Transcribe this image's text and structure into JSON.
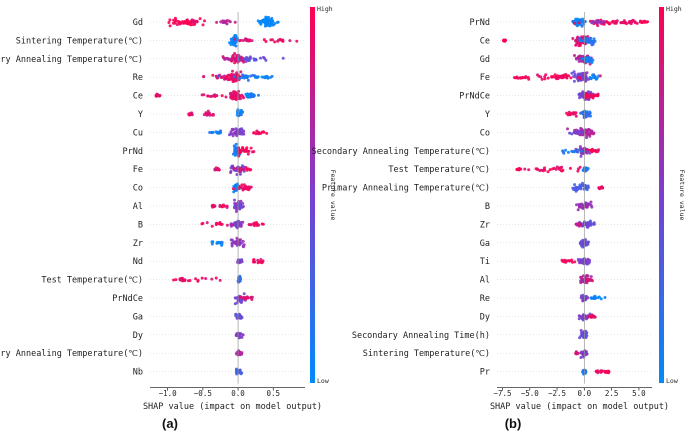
{
  "chart_data": [
    {
      "type": "beeswarm",
      "panel_label": "(a)",
      "xlabel": "SHAP value (impact on model output)",
      "xlim": [
        -1.25,
        0.95
      ],
      "xticks": [
        -1.0,
        -0.5,
        0.0,
        0.5
      ],
      "xtick_labels": [
        "−1.0",
        "−0.5",
        "0.0",
        "0.5"
      ],
      "colorbar": {
        "title": "Feature value",
        "high": "High",
        "low": "Low"
      },
      "features": [
        {
          "name": "Gd",
          "clusters": [
            [
              0.41,
              0.0,
              0.06,
              0.8,
              5
            ],
            [
              -0.78,
              1.0,
              0.12,
              0.6,
              3
            ],
            [
              -0.62,
              0.9,
              0.05,
              0.4,
              1
            ],
            [
              -0.2,
              0.75,
              0.06,
              0.4,
              1
            ]
          ]
        },
        {
          "name": "Sintering Temperature(℃)",
          "clusters": [
            [
              -0.05,
              0.0,
              0.02,
              0.8,
              4
            ],
            [
              0.55,
              0.95,
              0.16,
              0.4,
              1
            ],
            [
              0.12,
              0.85,
              0.05,
              0.3,
              1
            ]
          ]
        },
        {
          "name": "Secondary Annealing Temperature(℃)",
          "clusters": [
            [
              -0.03,
              0.9,
              0.05,
              0.8,
              4
            ],
            [
              0.15,
              0.4,
              0.15,
              0.5,
              2
            ],
            [
              -0.15,
              0.75,
              0.06,
              0.3,
              1
            ]
          ]
        },
        {
          "name": "Re",
          "clusters": [
            [
              -0.05,
              0.9,
              0.05,
              0.8,
              4
            ],
            [
              -0.2,
              0.9,
              0.14,
              0.4,
              2
            ],
            [
              0.12,
              0.1,
              0.1,
              0.4,
              2
            ],
            [
              0.4,
              0.05,
              0.05,
              0.3,
              1
            ]
          ]
        },
        {
          "name": "Ce",
          "clusters": [
            [
              -0.05,
              0.9,
              0.05,
              0.8,
              4
            ],
            [
              0.18,
              0.05,
              0.04,
              0.5,
              2
            ],
            [
              -0.35,
              0.9,
              0.1,
              0.3,
              1
            ],
            [
              -1.15,
              0.9,
              0.02,
              0.2,
              1
            ]
          ]
        },
        {
          "name": "Y",
          "clusters": [
            [
              0.02,
              0.05,
              0.02,
              0.5,
              2
            ],
            [
              -0.4,
              0.9,
              0.07,
              0.4,
              1
            ],
            [
              -0.68,
              0.9,
              0.02,
              0.2,
              1
            ]
          ]
        },
        {
          "name": "Cu",
          "clusters": [
            [
              -0.01,
              0.5,
              0.05,
              0.8,
              3
            ],
            [
              0.3,
              1.0,
              0.05,
              0.4,
              1
            ],
            [
              -0.3,
              0.1,
              0.06,
              0.3,
              1
            ]
          ]
        },
        {
          "name": "PrNd",
          "clusters": [
            [
              -0.02,
              0.1,
              0.03,
              0.8,
              3
            ],
            [
              0.1,
              1.0,
              0.06,
              0.6,
              2
            ]
          ]
        },
        {
          "name": "Fe",
          "clusters": [
            [
              -0.02,
              0.5,
              0.05,
              0.8,
              3
            ],
            [
              0.1,
              0.9,
              0.05,
              0.4,
              1
            ],
            [
              -0.3,
              0.9,
              0.02,
              0.2,
              1
            ]
          ]
        },
        {
          "name": "Co",
          "clusters": [
            [
              -0.02,
              0.1,
              0.02,
              0.7,
              3
            ],
            [
              0.1,
              0.95,
              0.05,
              0.5,
              2
            ]
          ]
        },
        {
          "name": "Al",
          "clusters": [
            [
              0.0,
              0.5,
              0.04,
              0.8,
              3
            ],
            [
              -0.2,
              0.9,
              0.04,
              0.3,
              1
            ],
            [
              -0.35,
              0.9,
              0.01,
              0.2,
              1
            ]
          ]
        },
        {
          "name": "B",
          "clusters": [
            [
              0.0,
              0.5,
              0.04,
              0.8,
              3
            ],
            [
              -0.25,
              0.9,
              0.1,
              0.3,
              1
            ],
            [
              0.25,
              0.95,
              0.06,
              0.3,
              1
            ]
          ]
        },
        {
          "name": "Zr",
          "clusters": [
            [
              0.0,
              0.6,
              0.04,
              0.8,
              3
            ],
            [
              -0.3,
              0.05,
              0.05,
              0.3,
              1
            ]
          ]
        },
        {
          "name": "Nd",
          "clusters": [
            [
              0.02,
              0.5,
              0.02,
              0.4,
              1
            ],
            [
              0.28,
              0.95,
              0.05,
              0.4,
              1
            ]
          ]
        },
        {
          "name": "Test Temperature(℃)",
          "clusters": [
            [
              0.02,
              0.2,
              0.01,
              0.5,
              2
            ],
            [
              -0.55,
              0.95,
              0.2,
              0.4,
              1
            ],
            [
              -0.8,
              0.9,
              0.03,
              0.3,
              1
            ]
          ]
        },
        {
          "name": "PrNdCe",
          "clusters": [
            [
              0.02,
              0.5,
              0.04,
              0.8,
              2
            ],
            [
              0.12,
              0.9,
              0.03,
              0.3,
              1
            ]
          ]
        },
        {
          "name": "Ga",
          "clusters": [
            [
              0.01,
              0.4,
              0.02,
              0.6,
              2
            ]
          ]
        },
        {
          "name": "Dy",
          "clusters": [
            [
              0.01,
              0.5,
              0.02,
              0.6,
              2
            ]
          ]
        },
        {
          "name": "Primary Annealing Temperature(℃)",
          "clusters": [
            [
              0.01,
              0.7,
              0.02,
              0.6,
              2
            ]
          ]
        },
        {
          "name": "Nb",
          "clusters": [
            [
              0.01,
              0.3,
              0.02,
              0.5,
              2
            ]
          ]
        }
      ]
    },
    {
      "type": "beeswarm",
      "panel_label": "(b)",
      "xlabel": "SHAP value (impact on model output)",
      "xlim": [
        -8.0,
        6.2
      ],
      "xticks": [
        -7.5,
        -5.0,
        -2.5,
        0.0,
        2.5,
        5.0
      ],
      "xtick_labels": [
        "−7.5",
        "−5.0",
        "−2.5",
        "0.0",
        "2.5",
        "5.0"
      ],
      "colorbar": {
        "title": "Feature value",
        "high": "High",
        "low": "Low"
      },
      "features": [
        {
          "name": "PrNd",
          "clusters": [
            [
              -0.5,
              0.05,
              0.3,
              0.6,
              4
            ],
            [
              2.8,
              0.92,
              1.4,
              0.5,
              4
            ],
            [
              1.2,
              0.6,
              0.4,
              0.3,
              1
            ],
            [
              5.4,
              1.0,
              0.2,
              0.2,
              1
            ]
          ]
        },
        {
          "name": "Ce",
          "clusters": [
            [
              -0.3,
              0.9,
              0.35,
              0.9,
              5
            ],
            [
              0.4,
              0.15,
              0.3,
              0.6,
              3
            ],
            [
              -7.3,
              1.0,
              0.05,
              0.2,
              1
            ]
          ]
        },
        {
          "name": "Gd",
          "clusters": [
            [
              -0.1,
              0.7,
              0.4,
              0.8,
              4
            ],
            [
              0.3,
              0.1,
              0.2,
              0.5,
              2
            ]
          ]
        },
        {
          "name": "Fe",
          "clusters": [
            [
              -0.3,
              0.5,
              0.4,
              0.8,
              4
            ],
            [
              -2.5,
              0.95,
              1.2,
              0.5,
              3
            ],
            [
              -5.8,
              1.0,
              0.5,
              0.3,
              1
            ],
            [
              1.0,
              0.05,
              0.3,
              0.4,
              1
            ]
          ]
        },
        {
          "name": "PrNdCe",
          "clusters": [
            [
              0.1,
              0.5,
              0.3,
              0.8,
              4
            ],
            [
              0.7,
              0.95,
              0.3,
              0.4,
              2
            ]
          ]
        },
        {
          "name": "Y",
          "clusters": [
            [
              0.1,
              0.2,
              0.2,
              0.6,
              3
            ],
            [
              -1.0,
              0.95,
              0.4,
              0.4,
              1
            ]
          ]
        },
        {
          "name": "Co",
          "clusters": [
            [
              0.0,
              0.7,
              0.5,
              0.8,
              4
            ],
            [
              -0.6,
              0.5,
              0.3,
              0.4,
              1
            ]
          ]
        },
        {
          "name": "Secondary Annealing Temperature(℃)",
          "clusters": [
            [
              0.0,
              0.6,
              0.3,
              0.7,
              3
            ],
            [
              -1.0,
              0.15,
              0.8,
              0.4,
              1
            ],
            [
              0.8,
              0.95,
              0.3,
              0.3,
              1
            ]
          ]
        },
        {
          "name": "Test Temperature(℃)",
          "clusters": [
            [
              0.1,
              0.1,
              0.1,
              0.5,
              2
            ],
            [
              -3.0,
              0.95,
              1.5,
              0.5,
              2
            ],
            [
              -6.0,
              1.0,
              0.1,
              0.2,
              1
            ]
          ]
        },
        {
          "name": "Primary Annealing Temperature(℃)",
          "clusters": [
            [
              -0.2,
              0.3,
              0.5,
              0.6,
              3
            ],
            [
              1.5,
              0.95,
              0.1,
              0.2,
              1
            ]
          ]
        },
        {
          "name": "B",
          "clusters": [
            [
              0.0,
              0.6,
              0.3,
              0.7,
              3
            ]
          ]
        },
        {
          "name": "Zr",
          "clusters": [
            [
              0.1,
              0.4,
              0.3,
              0.6,
              3
            ],
            [
              -0.5,
              0.8,
              0.2,
              0.3,
              1
            ]
          ]
        },
        {
          "name": "Ga",
          "clusters": [
            [
              0.0,
              0.4,
              0.2,
              0.6,
              3
            ]
          ]
        },
        {
          "name": "Ti",
          "clusters": [
            [
              0.0,
              0.5,
              0.2,
              0.6,
              3
            ],
            [
              -1.5,
              0.95,
              0.4,
              0.3,
              1
            ]
          ]
        },
        {
          "name": "Al",
          "clusters": [
            [
              0.0,
              0.7,
              0.2,
              0.7,
              3
            ],
            [
              0.5,
              0.9,
              0.1,
              0.2,
              1
            ]
          ]
        },
        {
          "name": "Re",
          "clusters": [
            [
              0.0,
              0.5,
              0.15,
              0.6,
              2
            ],
            [
              1.0,
              0.05,
              0.4,
              0.3,
              1
            ]
          ]
        },
        {
          "name": "Dy",
          "clusters": [
            [
              0.0,
              0.5,
              0.2,
              0.6,
              2
            ],
            [
              0.7,
              0.9,
              0.2,
              0.3,
              1
            ]
          ]
        },
        {
          "name": "Secondary Annealing Time(h)",
          "clusters": [
            [
              0.0,
              0.4,
              0.15,
              0.6,
              2
            ]
          ]
        },
        {
          "name": "Sintering Temperature(℃)",
          "clusters": [
            [
              0.0,
              0.5,
              0.15,
              0.6,
              2
            ],
            [
              -0.7,
              0.9,
              0.05,
              0.2,
              1
            ]
          ]
        },
        {
          "name": "Pr",
          "clusters": [
            [
              0.0,
              0.1,
              0.1,
              0.5,
              2
            ],
            [
              1.5,
              0.95,
              0.3,
              0.3,
              1
            ],
            [
              2.1,
              1.0,
              0.1,
              0.2,
              1
            ]
          ]
        }
      ]
    }
  ]
}
